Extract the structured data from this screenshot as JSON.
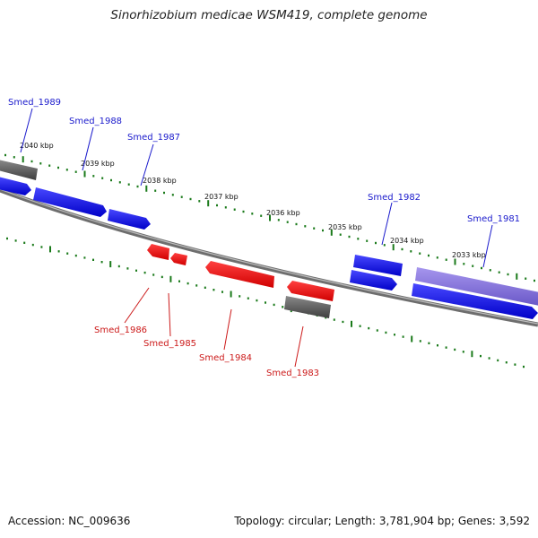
{
  "title": "Sinorhizobium medicae WSM419, complete genome",
  "accession": "Accession: NC_009636",
  "stats": "Topology: circular; Length: 3,781,904 bp; Genes: 3,592",
  "colors": {
    "forward_gene": "#1010e0",
    "reverse_gene": "#ee1010",
    "other_gene": "#5a5a5a",
    "highlight_gene": "#8474d8",
    "backbone": "#777777",
    "ticks": "#1a7a1a",
    "label_forward": "#1a1acc",
    "label_reverse": "#cc1a1a"
  },
  "kbp_ticks": [
    "2040 kbp",
    "2039 kbp",
    "2038 kbp",
    "2037 kbp",
    "2036 kbp",
    "2035 kbp",
    "2034 kbp",
    "2033 kbp"
  ],
  "gene_labels_forward": [
    "Smed_1989",
    "Smed_1988",
    "Smed_1987",
    "Smed_1982",
    "Smed_1981"
  ],
  "gene_labels_reverse": [
    "Smed_1986",
    "Smed_1985",
    "Smed_1984",
    "Smed_1983"
  ]
}
